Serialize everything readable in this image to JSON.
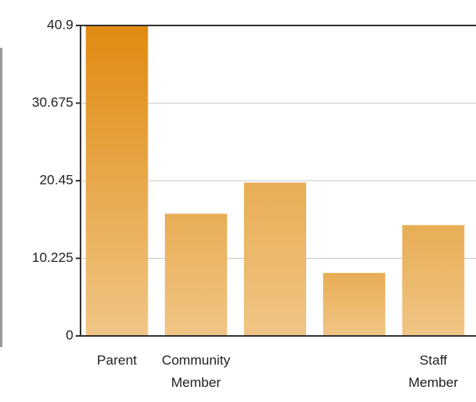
{
  "chart_data": {
    "type": "bar",
    "title": "",
    "xlabel": "",
    "ylabel": "",
    "ylim": [
      0,
      40.9
    ],
    "yticks": [
      "0",
      "10.225",
      "20.45",
      "30.675",
      "40.9"
    ],
    "grid": true,
    "categories": [
      [
        "Parent"
      ],
      [
        "Community",
        "Member"
      ],
      [],
      [],
      [
        "Staff",
        "Member"
      ]
    ],
    "values": [
      40.9,
      16.1,
      20.2,
      8.3,
      14.6
    ],
    "colors": {
      "bar_top": "#e08a10",
      "bar_bottom": "#f0c585",
      "bar_flat_top": "#e8ad55",
      "grid": "#c8c8c8",
      "axis": "#333333"
    }
  }
}
